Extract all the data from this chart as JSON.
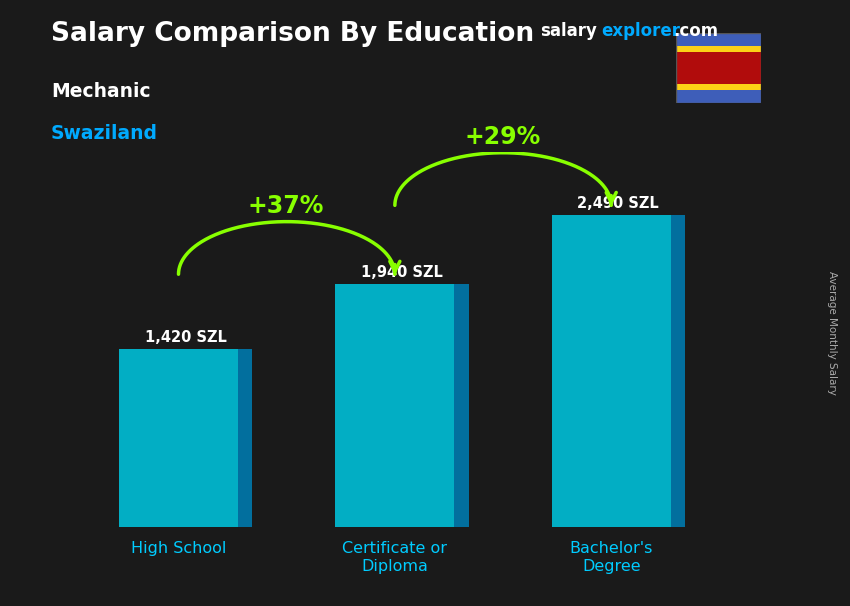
{
  "title_main": "Salary Comparison By Education",
  "subtitle1": "Mechanic",
  "subtitle2": "Swaziland",
  "categories": [
    "High School",
    "Certificate or\nDiploma",
    "Bachelor's\nDegree"
  ],
  "values": [
    1420,
    1940,
    2490
  ],
  "value_labels": [
    "1,420 SZL",
    "1,940 SZL",
    "2,490 SZL"
  ],
  "pct_labels": [
    "+37%",
    "+29%"
  ],
  "bar_face_color": "#00bcd4",
  "bar_side_color": "#0077aa",
  "bar_top_color": "#4dd9ec",
  "background_color": "#1a1a1a",
  "title_color": "#ffffff",
  "subtitle1_color": "#ffffff",
  "subtitle2_color": "#00aaff",
  "value_label_color": "#ffffff",
  "pct_color": "#88ff00",
  "axis_label_color": "#00ccff",
  "watermark_salary_color": "#ffffff",
  "watermark_explorer_color": "#00aaff",
  "watermark_com_color": "#aaaaaa",
  "ylim": [
    0,
    3000
  ],
  "bar_width": 0.55,
  "side_label": "Average Monthly Salary",
  "website_salary": "salary",
  "website_explorer": "explorer",
  "website_com": ".com"
}
